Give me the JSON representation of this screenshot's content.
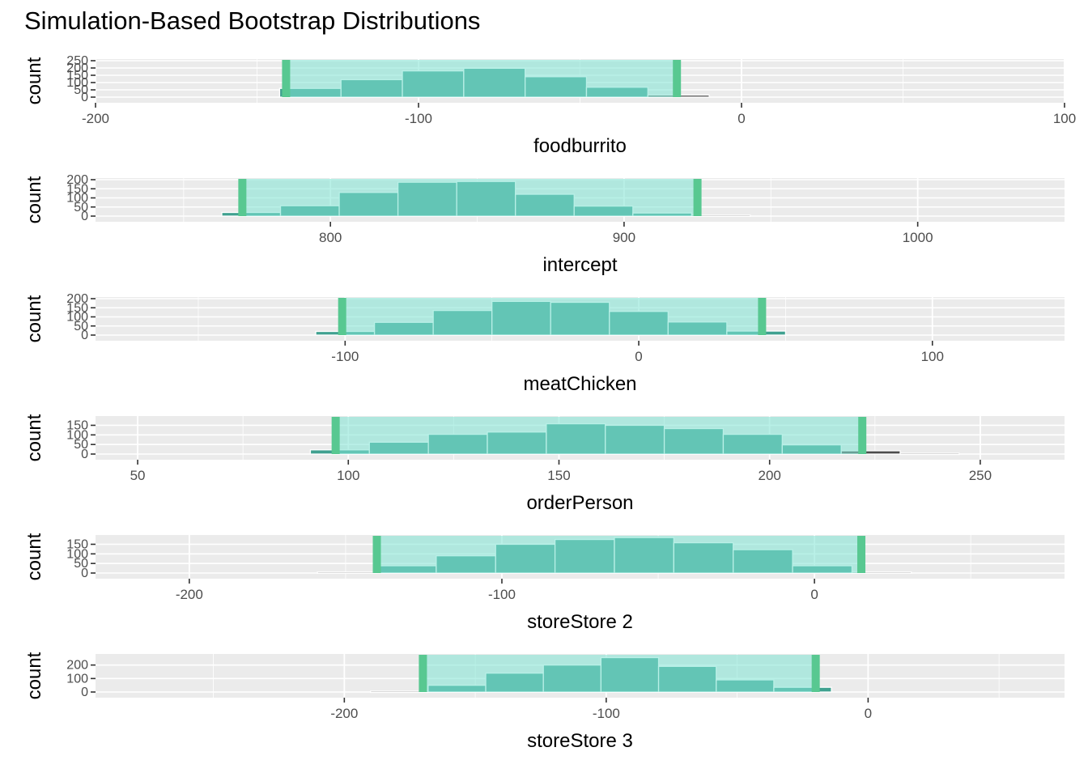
{
  "title": "Simulation-Based Bootstrap Distributions",
  "colors": {
    "panel_bg": "#ebebeb",
    "grid": "#ffffff",
    "bar_fill": "#40a190",
    "bar_stroke": "#ffffff",
    "ci_fill": "#7fe3d3",
    "ci_edge": "#58c891",
    "outside_bar": "#4d4d4d"
  },
  "chart_data": [
    {
      "type": "bar",
      "xlabel": "foodburrito",
      "ylabel": "count",
      "xlim": [
        -200,
        100
      ],
      "xticks": [
        -200,
        -100,
        0,
        100
      ],
      "ylim": [
        0,
        250
      ],
      "yticks": [
        0,
        50,
        100,
        150,
        200,
        250
      ],
      "ci": [
        -141,
        -20
      ],
      "bins": [
        {
          "from": -143,
          "to": -124,
          "count": 60
        },
        {
          "from": -124,
          "to": -105,
          "count": 120
        },
        {
          "from": -105,
          "to": -86,
          "count": 180
        },
        {
          "from": -86,
          "to": -67,
          "count": 198
        },
        {
          "from": -67,
          "to": -48,
          "count": 140
        },
        {
          "from": -48,
          "to": -29,
          "count": 68
        },
        {
          "from": -29,
          "to": -10,
          "count": 14
        }
      ]
    },
    {
      "type": "bar",
      "xlabel": "intercept",
      "ylabel": "count",
      "xlim": [
        720,
        1050
      ],
      "xticks": [
        800,
        900,
        1000
      ],
      "ylim": [
        0,
        200
      ],
      "yticks": [
        0,
        50,
        100,
        150,
        200
      ],
      "ci": [
        770,
        925
      ],
      "bins": [
        {
          "from": 763,
          "to": 783,
          "count": 20
        },
        {
          "from": 783,
          "to": 803,
          "count": 57
        },
        {
          "from": 803,
          "to": 823,
          "count": 130
        },
        {
          "from": 823,
          "to": 843,
          "count": 186
        },
        {
          "from": 843,
          "to": 863,
          "count": 190
        },
        {
          "from": 863,
          "to": 883,
          "count": 120
        },
        {
          "from": 883,
          "to": 903,
          "count": 55
        },
        {
          "from": 903,
          "to": 923,
          "count": 17
        },
        {
          "from": 923,
          "to": 943,
          "count": 5
        }
      ]
    },
    {
      "type": "bar",
      "xlabel": "meatChicken",
      "ylabel": "count",
      "xlim": [
        -185,
        145
      ],
      "xticks": [
        -100,
        0,
        100
      ],
      "ylim": [
        0,
        200
      ],
      "yticks": [
        0,
        50,
        100,
        150,
        200
      ],
      "ci": [
        -101,
        42
      ],
      "bins": [
        {
          "from": -110,
          "to": -90,
          "count": 20
        },
        {
          "from": -90,
          "to": -70,
          "count": 70
        },
        {
          "from": -70,
          "to": -50,
          "count": 135
        },
        {
          "from": -50,
          "to": -30,
          "count": 185
        },
        {
          "from": -30,
          "to": -10,
          "count": 180
        },
        {
          "from": -10,
          "to": 10,
          "count": 130
        },
        {
          "from": 10,
          "to": 30,
          "count": 72
        },
        {
          "from": 30,
          "to": 50,
          "count": 22
        }
      ]
    },
    {
      "type": "bar",
      "xlabel": "orderPerson",
      "ylabel": "count",
      "xlim": [
        40,
        270
      ],
      "xticks": [
        50,
        100,
        150,
        200,
        250
      ],
      "ylim": [
        0,
        190
      ],
      "yticks": [
        0,
        50,
        100,
        150
      ],
      "ci": [
        97,
        222
      ],
      "bins": [
        {
          "from": 91,
          "to": 105,
          "count": 22
        },
        {
          "from": 105,
          "to": 119,
          "count": 62
        },
        {
          "from": 119,
          "to": 133,
          "count": 103
        },
        {
          "from": 133,
          "to": 147,
          "count": 115
        },
        {
          "from": 147,
          "to": 161,
          "count": 158
        },
        {
          "from": 161,
          "to": 175,
          "count": 150
        },
        {
          "from": 175,
          "to": 189,
          "count": 133
        },
        {
          "from": 189,
          "to": 203,
          "count": 103
        },
        {
          "from": 203,
          "to": 217,
          "count": 48
        },
        {
          "from": 217,
          "to": 231,
          "count": 17
        },
        {
          "from": 231,
          "to": 245,
          "count": 4
        }
      ]
    },
    {
      "type": "bar",
      "xlabel": "storeStore 2",
      "ylabel": "count",
      "xlim": [
        -230,
        80
      ],
      "xticks": [
        -200,
        -100,
        0
      ],
      "ylim": [
        0,
        190
      ],
      "yticks": [
        0,
        50,
        100,
        150
      ],
      "ci": [
        -140,
        15
      ],
      "bins": [
        {
          "from": -159,
          "to": -140,
          "count": 5
        },
        {
          "from": -140,
          "to": -121,
          "count": 38
        },
        {
          "from": -121,
          "to": -102,
          "count": 90
        },
        {
          "from": -102,
          "to": -83,
          "count": 150
        },
        {
          "from": -83,
          "to": -64,
          "count": 175
        },
        {
          "from": -64,
          "to": -45,
          "count": 185
        },
        {
          "from": -45,
          "to": -26,
          "count": 158
        },
        {
          "from": -26,
          "to": -7,
          "count": 122
        },
        {
          "from": -7,
          "to": 12,
          "count": 38
        },
        {
          "from": 12,
          "to": 31,
          "count": 5
        }
      ]
    },
    {
      "type": "bar",
      "xlabel": "storeStore 3",
      "ylabel": "count",
      "xlim": [
        -295,
        75
      ],
      "xticks": [
        -200,
        -100,
        0
      ],
      "ylim": [
        0,
        270
      ],
      "yticks": [
        0,
        100,
        200
      ],
      "ci": [
        -170,
        -20
      ],
      "bins": [
        {
          "from": -190,
          "to": -168,
          "count": 6
        },
        {
          "from": -168,
          "to": -146,
          "count": 50
        },
        {
          "from": -146,
          "to": -124,
          "count": 140
        },
        {
          "from": -124,
          "to": -102,
          "count": 200
        },
        {
          "from": -102,
          "to": -80,
          "count": 255
        },
        {
          "from": -80,
          "to": -58,
          "count": 190
        },
        {
          "from": -58,
          "to": -36,
          "count": 90
        },
        {
          "from": -36,
          "to": -14,
          "count": 35
        }
      ]
    }
  ]
}
